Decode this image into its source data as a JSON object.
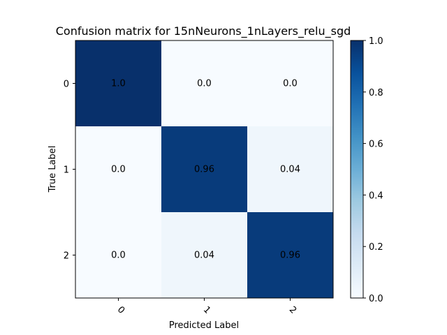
{
  "chart_data": {
    "type": "heatmap",
    "title": "Confusion matrix for 15nNeurons_1nLayers_relu_sgd",
    "xlabel": "Predicted Label",
    "ylabel": "True Label",
    "x_categories": [
      "0",
      "1",
      "2"
    ],
    "y_categories": [
      "0",
      "1",
      "2"
    ],
    "values": [
      [
        1.0,
        0.0,
        0.0
      ],
      [
        0.0,
        0.96,
        0.04
      ],
      [
        0.0,
        0.04,
        0.96
      ]
    ],
    "cell_labels": [
      [
        "1.0",
        "0.0",
        "0.0"
      ],
      [
        "0.0",
        "0.96",
        "0.04"
      ],
      [
        "0.0",
        "0.04",
        "0.96"
      ]
    ],
    "colormap": "Blues",
    "colormap_stops": [
      "#f7fbff",
      "#deebf7",
      "#c6dbef",
      "#9ecae1",
      "#6baed6",
      "#4292c6",
      "#2171b5",
      "#08519c",
      "#08306b"
    ],
    "colorbar": {
      "range": [
        0.0,
        1.0
      ],
      "ticks": [
        "0.0",
        "0.2",
        "0.4",
        "0.6",
        "0.8",
        "1.0"
      ]
    },
    "x_tick_rotation": 45,
    "grid": false
  }
}
